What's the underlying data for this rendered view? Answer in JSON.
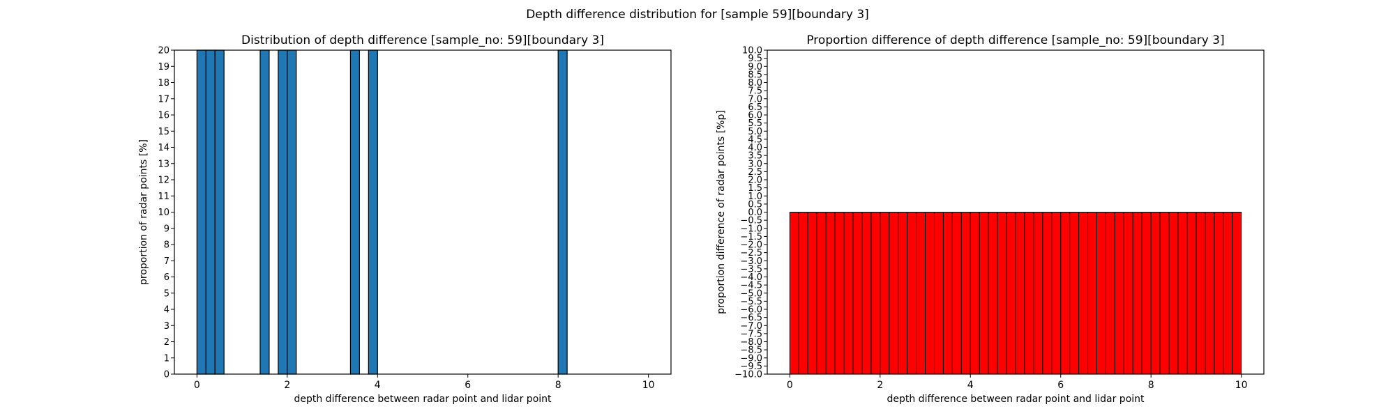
{
  "figure": {
    "suptitle": "Depth difference distribution for [sample 59][boundary 3]"
  },
  "chart_data": [
    {
      "type": "bar",
      "title": "Distribution of depth difference [sample_no: 59][boundary 3]",
      "xlabel": "depth difference between radar point and lidar point",
      "ylabel": "proportion of radar points [%]",
      "xlim": [
        -0.5,
        10.5
      ],
      "ylim": [
        0,
        20
      ],
      "xticks": [
        0,
        2,
        4,
        6,
        8,
        10
      ],
      "xtick_labels": [
        "0",
        "2",
        "4",
        "6",
        "8",
        "10"
      ],
      "yticks": [
        0,
        1,
        2,
        3,
        4,
        5,
        6,
        7,
        8,
        9,
        10,
        11,
        12,
        13,
        14,
        15,
        16,
        17,
        18,
        19,
        20
      ],
      "ytick_labels": [
        "0",
        "1",
        "2",
        "3",
        "4",
        "5",
        "6",
        "7",
        "8",
        "9",
        "10",
        "11",
        "12",
        "13",
        "14",
        "15",
        "16",
        "17",
        "18",
        "19",
        "20"
      ],
      "bin_width": 0.2,
      "bars": [
        {
          "x": 0.0,
          "value": 20
        },
        {
          "x": 0.2,
          "value": 20
        },
        {
          "x": 0.4,
          "value": 20
        },
        {
          "x": 1.4,
          "value": 20
        },
        {
          "x": 1.8,
          "value": 20
        },
        {
          "x": 2.0,
          "value": 20
        },
        {
          "x": 3.4,
          "value": 20
        },
        {
          "x": 3.8,
          "value": 20
        },
        {
          "x": 8.0,
          "value": 20
        }
      ],
      "bar_color": "#1f77b4",
      "edge_color": "#000000",
      "grid": false
    },
    {
      "type": "bar",
      "title": "Proportion difference of depth difference [sample_no: 59][boundary 3]",
      "xlabel": "depth difference between radar point and lidar point",
      "ylabel": "proportion difference of radar points [%p]",
      "xlim": [
        -0.5,
        10.5
      ],
      "ylim": [
        -10,
        10
      ],
      "xticks": [
        0,
        2,
        4,
        6,
        8,
        10
      ],
      "xtick_labels": [
        "0",
        "2",
        "4",
        "6",
        "8",
        "10"
      ],
      "yticks": [
        -10,
        -9.5,
        -9,
        -8.5,
        -8,
        -7.5,
        -7,
        -6.5,
        -6,
        -5.5,
        -5,
        -4.5,
        -4,
        -3.5,
        -3,
        -2.5,
        -2,
        -1.5,
        -1,
        -0.5,
        0,
        0.5,
        1,
        1.5,
        2,
        2.5,
        3,
        3.5,
        4,
        4.5,
        5,
        5.5,
        6,
        6.5,
        7,
        7.5,
        8,
        8.5,
        9,
        9.5,
        10
      ],
      "ytick_labels": [
        "−10.0",
        "−9.5",
        "−9.0",
        "−8.5",
        "−8.0",
        "−7.5",
        "−7.0",
        "−6.5",
        "−6.0",
        "−5.5",
        "−5.0",
        "−4.5",
        "−4.0",
        "−3.5",
        "−3.0",
        "−2.5",
        "−2.0",
        "−1.5",
        "−1.0",
        "−0.5",
        "0.0",
        "0.5",
        "1.0",
        "1.5",
        "2.0",
        "2.5",
        "3.0",
        "3.5",
        "4.0",
        "4.5",
        "5.0",
        "5.5",
        "6.0",
        "6.5",
        "7.0",
        "7.5",
        "8.0",
        "8.5",
        "9.0",
        "9.5",
        "10.0"
      ],
      "bin_width": 0.2,
      "bin_start": 0,
      "bin_count": 50,
      "bar_top": 0,
      "bar_bottom": -10,
      "bar_color": "#ff0000",
      "edge_color": "#000000",
      "grid": false
    }
  ]
}
